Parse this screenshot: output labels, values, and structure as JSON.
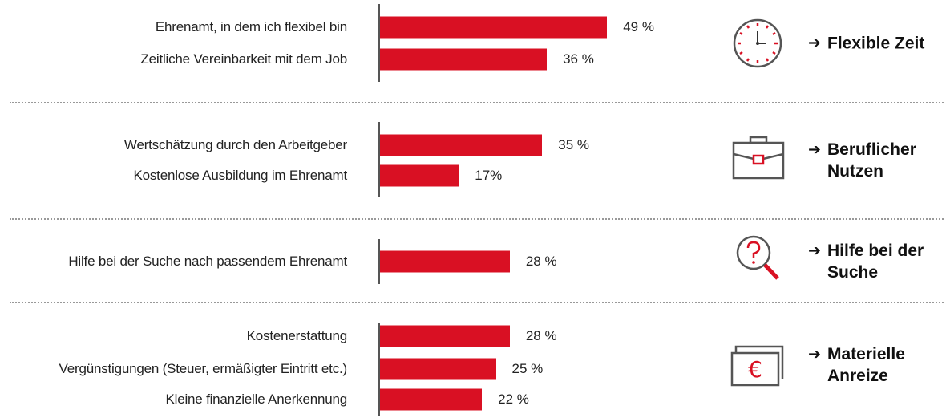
{
  "chart_data": [
    {
      "type": "bar",
      "orientation": "horizontal",
      "title": "Flexible Zeit",
      "color": "#d91023",
      "categories": [
        "Ehrenamt, in dem ich flexibel bin",
        "Zeitliche Vereinbarkeit mit dem Job"
      ],
      "values": [
        49,
        36
      ],
      "value_labels": [
        "49 %",
        "36 %"
      ]
    },
    {
      "type": "bar",
      "orientation": "horizontal",
      "title": "Beruflicher Nutzen",
      "color": "#d91023",
      "categories": [
        "Wertschätzung durch den Arbeitgeber",
        "Kostenlose Ausbildung im Ehrenamt"
      ],
      "values": [
        35,
        17
      ],
      "value_labels": [
        "35 %",
        "17%"
      ]
    },
    {
      "type": "bar",
      "orientation": "horizontal",
      "title": "Hilfe bei der Suche",
      "color": "#d91023",
      "categories": [
        "Hilfe bei der Suche nach passendem Ehrenamt"
      ],
      "values": [
        28
      ],
      "value_labels": [
        "28 %"
      ]
    },
    {
      "type": "bar",
      "orientation": "horizontal",
      "title": "Materielle Anreize",
      "color": "#d91023",
      "categories": [
        "Kostenerstattung",
        "Vergünstigungen (Steuer, ermäßigter Eintritt etc.)",
        "Kleine finanzielle Anerkennung"
      ],
      "values": [
        28,
        25,
        22
      ],
      "value_labels": [
        "28 %",
        "25 %",
        "22 %"
      ]
    }
  ]
}
